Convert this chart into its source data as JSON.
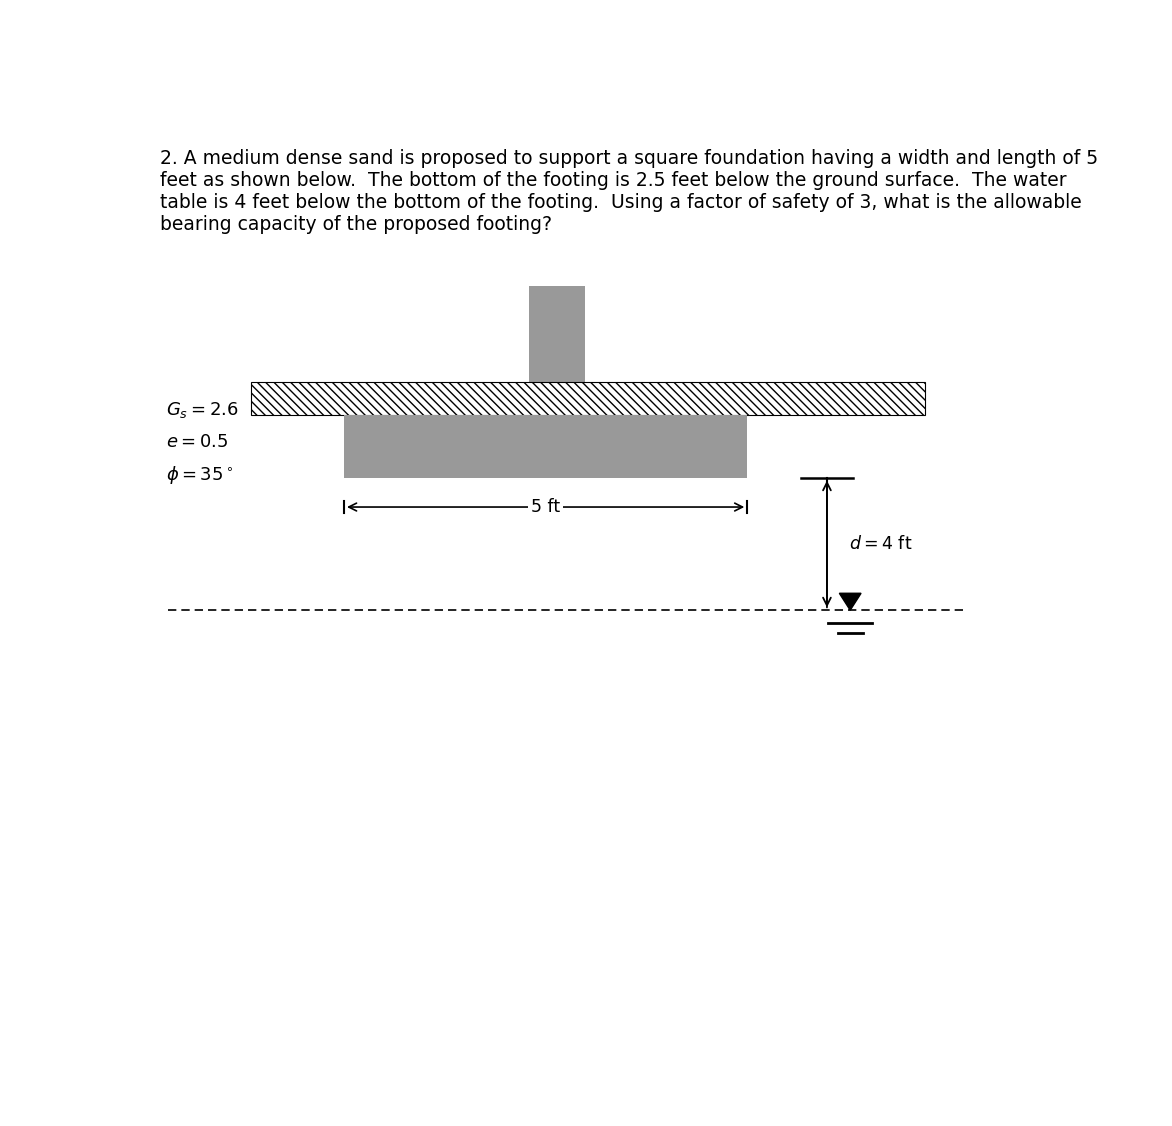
{
  "title_text": "2. A medium dense sand is proposed to support a square foundation having a width and length of 5\nfeet as shown below.  The bottom of the footing is 2.5 feet below the ground surface.  The water\ntable is 4 feet below the bottom of the footing.  Using a factor of safety of 3, what is the allowable\nbearing capacity of the proposed footing?",
  "background_color": "#ffffff",
  "gray_color": "#999999",
  "text_color": "#000000",
  "gs_label": "$G_s = 2.6$",
  "e_label": "$e = 0.5$",
  "phi_label": "$\\phi = 35^\\circ$",
  "width_label": "5 ft",
  "d_label": "$d = 4$ ft"
}
